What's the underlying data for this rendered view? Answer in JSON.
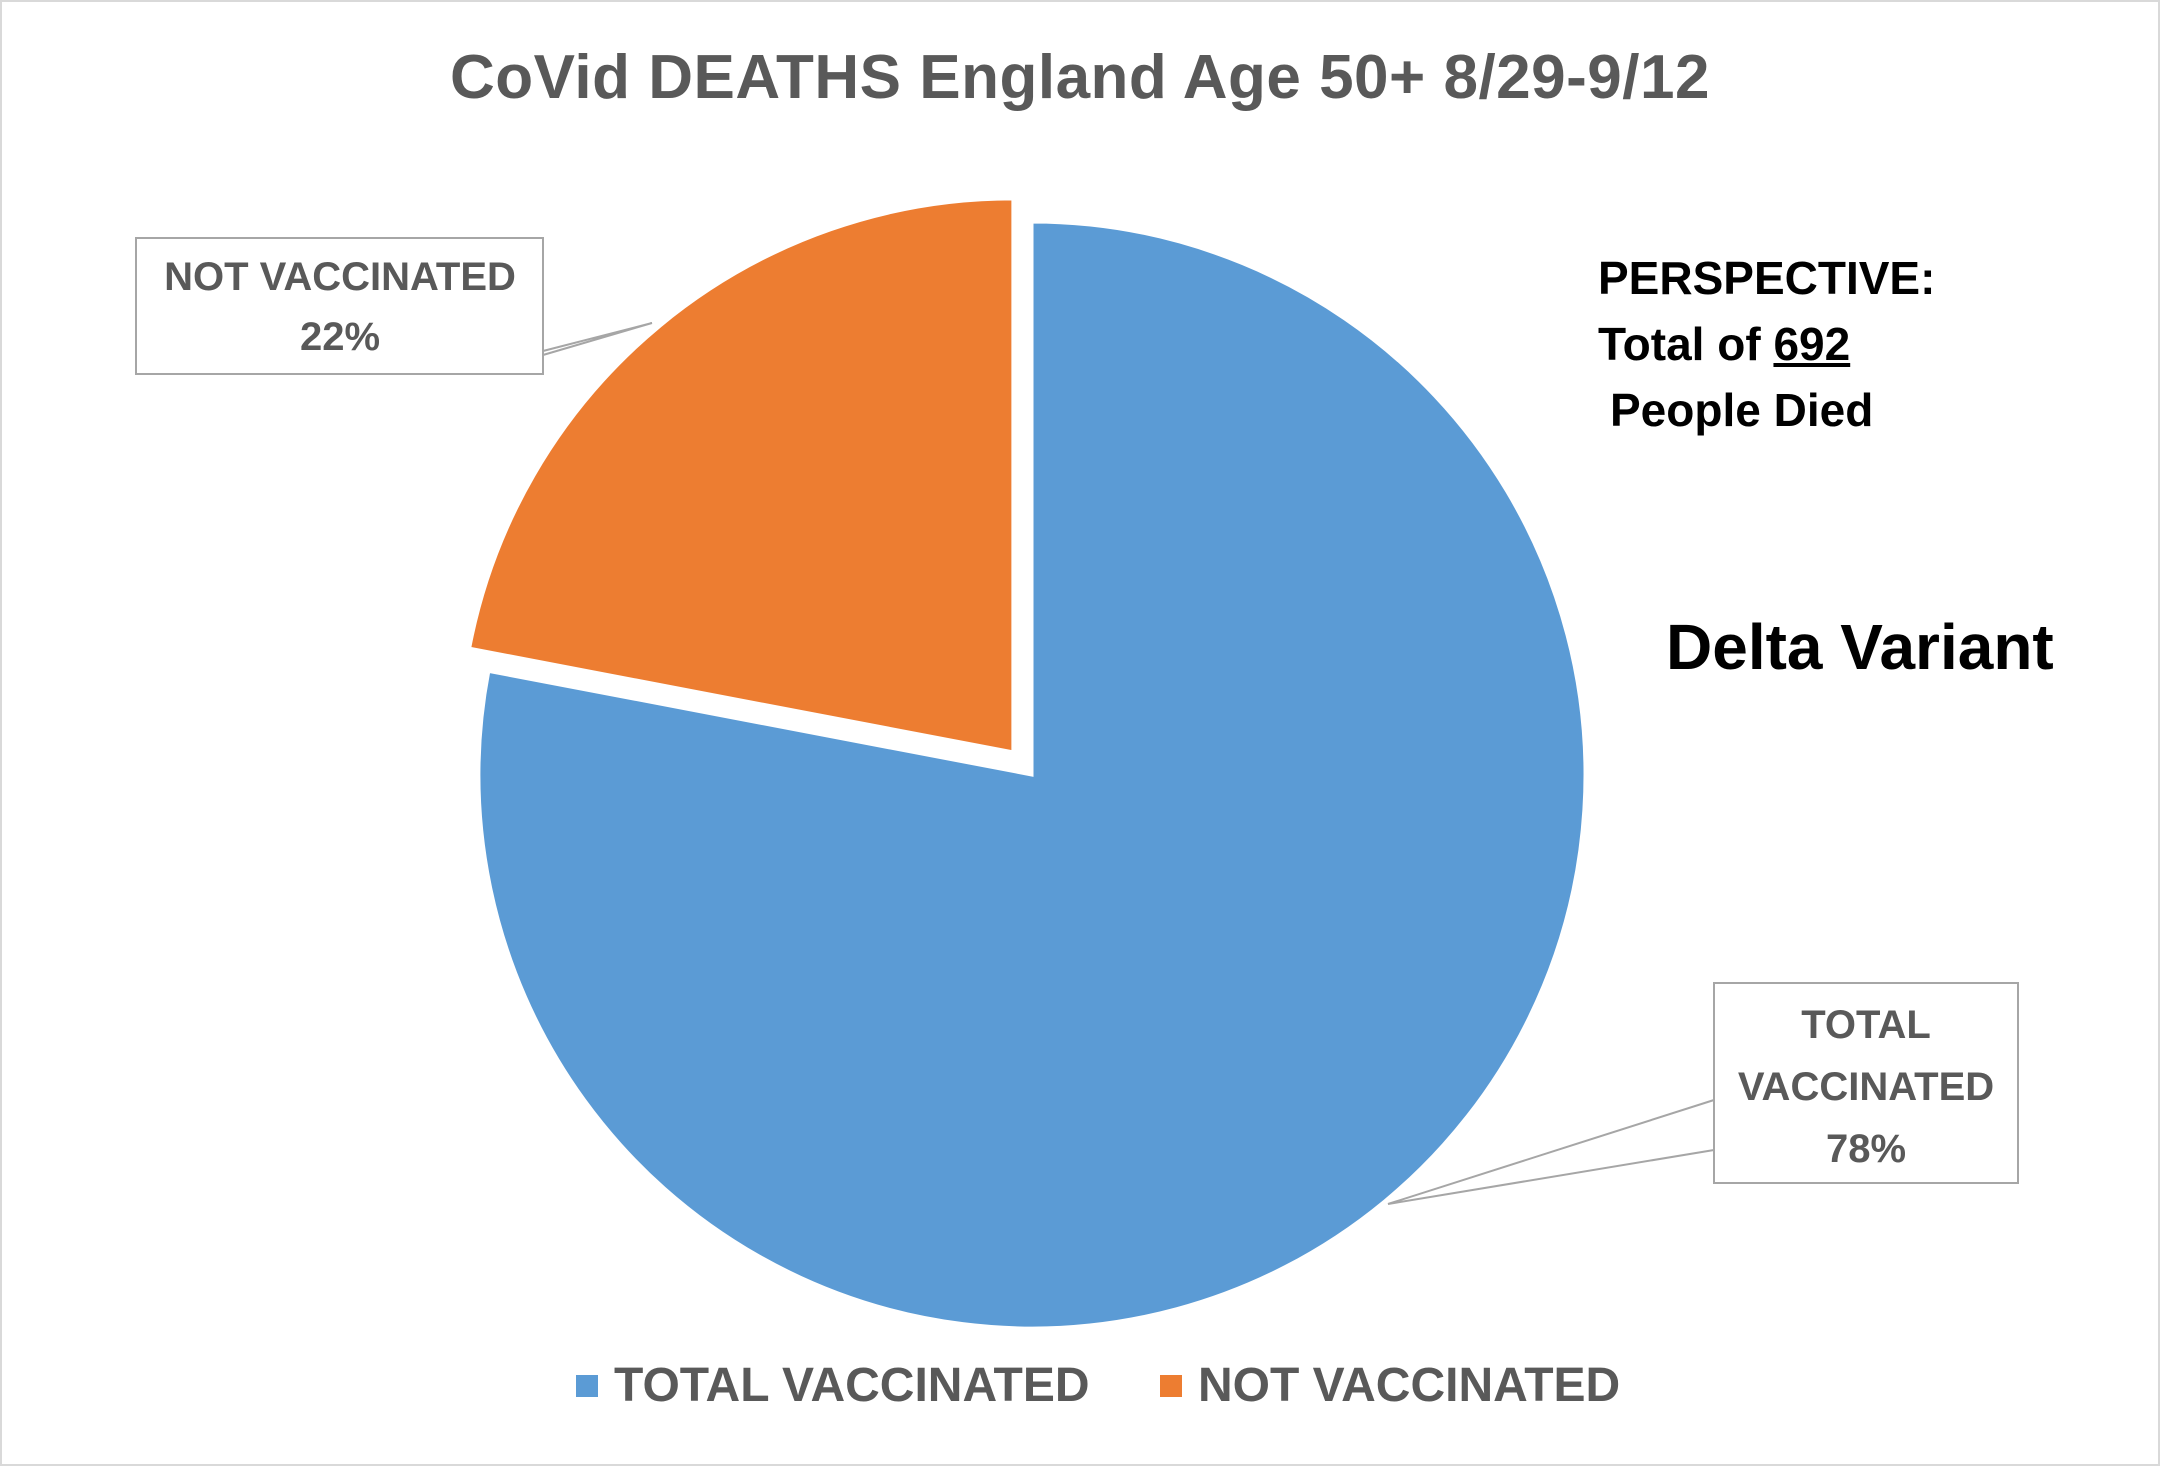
{
  "chart_data": {
    "type": "pie",
    "title": "CoVid DEATHS England  Age 50+    8/29-9/12",
    "slices": [
      {
        "name": "TOTAL VACCINATED",
        "value": 78,
        "label": "78%",
        "color": "#5B9BD5",
        "exploded": false,
        "label_lines": [
          "TOTAL",
          "VACCINATED",
          "78%"
        ]
      },
      {
        "name": "NOT VACCINATED",
        "value": 22,
        "label": "22%",
        "color": "#ED7D31",
        "exploded": true,
        "label_lines": [
          "NOT VACCINATED",
          "22%"
        ]
      }
    ],
    "legend": {
      "placement": "bottom",
      "entries": [
        "TOTAL VACCINATED",
        "NOT VACCINATED"
      ]
    },
    "annotations": {
      "perspective_heading": "PERSPECTIVE:",
      "perspective_prefix": "Total of ",
      "perspective_number": "692",
      "perspective_suffix": "People Died",
      "variant": "Delta Variant"
    }
  }
}
